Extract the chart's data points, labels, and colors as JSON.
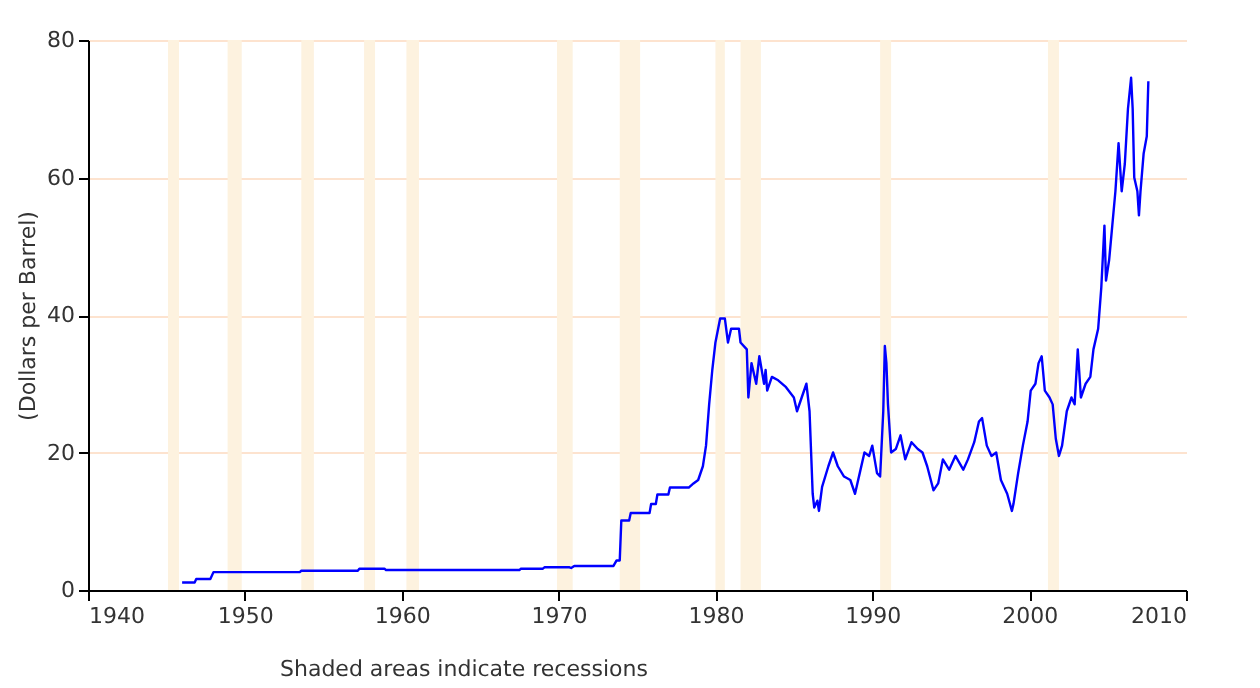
{
  "chart_data": {
    "type": "line",
    "ylabel": "(Dollars per Barrel)",
    "annotations": [
      "Shaded areas indicate recessions"
    ],
    "xlim": [
      1940,
      2010
    ],
    "xticks": [
      1940,
      1950,
      1960,
      1970,
      1980,
      1990,
      2000,
      2010
    ],
    "ylim": [
      0,
      80
    ],
    "yticks": [
      0,
      20,
      40,
      60,
      80
    ],
    "grid": "y",
    "line_style": "solid",
    "bands": [
      {
        "axis": "x",
        "from": 1945.1,
        "to": 1945.8,
        "color": "#fdf2df"
      },
      {
        "axis": "x",
        "from": 1948.9,
        "to": 1949.8,
        "color": "#fdf2df"
      },
      {
        "axis": "x",
        "from": 1953.6,
        "to": 1954.4,
        "color": "#fdf2df"
      },
      {
        "axis": "x",
        "from": 1957.6,
        "to": 1958.3,
        "color": "#fdf2df"
      },
      {
        "axis": "x",
        "from": 1960.3,
        "to": 1961.1,
        "color": "#fdf2df"
      },
      {
        "axis": "x",
        "from": 1969.9,
        "to": 1970.9,
        "color": "#fdf2df"
      },
      {
        "axis": "x",
        "from": 1973.9,
        "to": 1975.2,
        "color": "#fdf2df"
      },
      {
        "axis": "x",
        "from": 1980.0,
        "to": 1980.6,
        "color": "#fdf2df"
      },
      {
        "axis": "x",
        "from": 1981.6,
        "to": 1982.9,
        "color": "#fdf2df"
      },
      {
        "axis": "x",
        "from": 1990.5,
        "to": 1991.2,
        "color": "#fdf2df"
      },
      {
        "axis": "x",
        "from": 2001.2,
        "to": 2001.9,
        "color": "#fdf2df"
      }
    ],
    "series": [
      {
        "color": "#0000ff",
        "x": [
          1946.0,
          1946.8,
          1946.9,
          1947.8,
          1948.0,
          1953.5,
          1953.6,
          1957.2,
          1957.3,
          1958.9,
          1959.0,
          1967.5,
          1967.6,
          1969.0,
          1969.1,
          1970.7,
          1970.8,
          1971.0,
          1973.5,
          1973.7,
          1973.9,
          1974.0,
          1974.5,
          1974.6,
          1975.8,
          1975.9,
          1976.2,
          1976.3,
          1977.0,
          1977.1,
          1978.3,
          1978.6,
          1978.9,
          1979.2,
          1979.4,
          1979.6,
          1979.8,
          1980.0,
          1980.3,
          1980.6,
          1980.8,
          1981.0,
          1981.5,
          1981.6,
          1982.0,
          1982.1,
          1982.3,
          1982.6,
          1982.8,
          1983.1,
          1983.2,
          1983.3,
          1983.6,
          1984.0,
          1984.5,
          1985.0,
          1985.2,
          1985.5,
          1985.8,
          1986.0,
          1986.1,
          1986.2,
          1986.3,
          1986.5,
          1986.6,
          1986.8,
          1987.2,
          1987.5,
          1987.8,
          1988.2,
          1988.6,
          1988.9,
          1989.2,
          1989.5,
          1989.8,
          1990.0,
          1990.3,
          1990.5,
          1990.7,
          1990.8,
          1990.9,
          1991.0,
          1991.2,
          1991.5,
          1991.8,
          1992.1,
          1992.5,
          1992.9,
          1993.2,
          1993.5,
          1993.9,
          1994.2,
          1994.5,
          1994.9,
          1995.3,
          1995.8,
          1996.1,
          1996.5,
          1996.8,
          1997.0,
          1997.3,
          1997.6,
          1997.9,
          1998.2,
          1998.6,
          1998.9,
          1999.0,
          1999.3,
          1999.6,
          1999.9,
          2000.1,
          2000.4,
          2000.6,
          2000.8,
          2001.0,
          2001.3,
          2001.5,
          2001.7,
          2001.9,
          2002.1,
          2002.4,
          2002.7,
          2002.9,
          2003.1,
          2003.3,
          2003.6,
          2003.9,
          2004.1,
          2004.4,
          2004.6,
          2004.8,
          2004.9,
          2005.1,
          2005.3,
          2005.5,
          2005.7,
          2005.9,
          2006.1,
          2006.3,
          2006.5,
          2006.6,
          2006.7,
          2006.9,
          2007.0,
          2007.1,
          2007.3,
          2007.5,
          2007.6
        ],
        "values": [
          1.1,
          1.1,
          1.6,
          1.6,
          2.6,
          2.6,
          2.8,
          2.8,
          3.1,
          3.1,
          2.9,
          2.9,
          3.1,
          3.1,
          3.3,
          3.3,
          3.2,
          3.5,
          3.5,
          4.3,
          4.3,
          10.1,
          10.1,
          11.2,
          11.2,
          12.5,
          12.5,
          13.9,
          13.9,
          14.9,
          14.9,
          15.5,
          16,
          18,
          21,
          27,
          32,
          36,
          39.5,
          39.5,
          36,
          38,
          38,
          36,
          35,
          28,
          33,
          30,
          34,
          30,
          32,
          29,
          31,
          30.5,
          29.5,
          28,
          26,
          28,
          30,
          26,
          20,
          14,
          12,
          13,
          11.5,
          15,
          18,
          20,
          18,
          16.5,
          16,
          14,
          17,
          20,
          19.5,
          21,
          17,
          16.5,
          26,
          35.5,
          33,
          27,
          20,
          20.5,
          22.5,
          19,
          21.5,
          20.5,
          20,
          18,
          14.5,
          15.5,
          19,
          17.5,
          19.5,
          17.5,
          19,
          21.5,
          24.5,
          25,
          21,
          19.5,
          20,
          16,
          14,
          11.5,
          12.5,
          17,
          21,
          24.5,
          29,
          30,
          33,
          34,
          29,
          28,
          27,
          22,
          19.5,
          21,
          26,
          28,
          27,
          35,
          28,
          30,
          31,
          35,
          38,
          44,
          53,
          45,
          48,
          53,
          58,
          65,
          58,
          62,
          70,
          74.5,
          70,
          60,
          58,
          54.5,
          58,
          63.5,
          66,
          74
        ]
      }
    ]
  }
}
